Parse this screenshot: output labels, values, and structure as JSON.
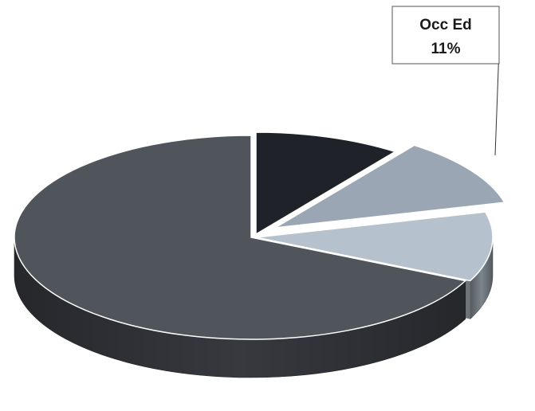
{
  "chart_data": {
    "type": "pie",
    "style": "3d-exploded",
    "slices": [
      {
        "category": "",
        "value": 10,
        "color": "#1f2329"
      },
      {
        "category": "Occ Ed",
        "value": 11,
        "color": "#9aa6b4"
      },
      {
        "category": "",
        "value": 11,
        "color": "#b5c1cc"
      },
      {
        "category": "",
        "value": 68,
        "color": "#50545b"
      }
    ],
    "callouts": [
      {
        "category": "Occ Ed",
        "label": "11%"
      }
    ]
  }
}
